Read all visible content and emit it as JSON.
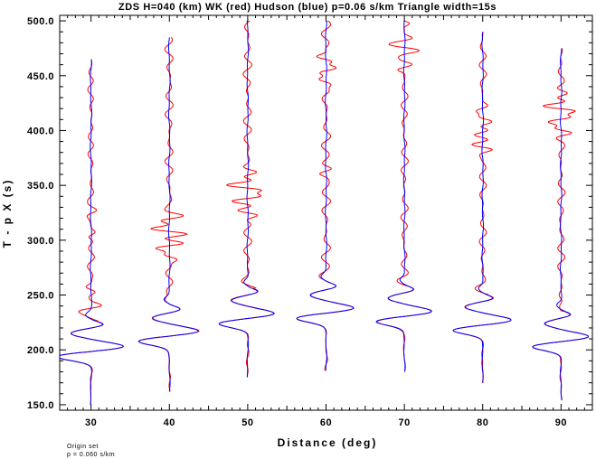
{
  "chart_data": {
    "type": "line",
    "title": "ZDS H=040 (km) WK (red) Hudson (blue) p=0.06 s/km Triangle width=15s",
    "xlabel": "Distance (deg)",
    "ylabel": "T - p X (s)",
    "xlim": [
      26,
      94
    ],
    "ylim": [
      145,
      505
    ],
    "xticks": [
      30,
      40,
      50,
      60,
      70,
      80,
      90
    ],
    "yticks": [
      150.0,
      200.0,
      250.0,
      300.0,
      350.0,
      400.0,
      450.0,
      500.0
    ],
    "ytick_labels": [
      "150.0",
      "200.0",
      "250.0",
      "300.0",
      "350.0",
      "400.0",
      "450.0",
      "500.0"
    ],
    "grid": false,
    "note_lines": [
      "Origin set",
      "p = 0.060 s/km"
    ],
    "series_colors": {
      "WK": "#ff0000",
      "Hudson": "#0000ff"
    },
    "traces": [
      {
        "distance": 30,
        "blue_start": 465,
        "red_start": 465,
        "end": 150,
        "arrival": 196,
        "amp": 4.5,
        "red_wiggle": 0.9,
        "red_pulses": [
          [
            238,
            1.3
          ],
          [
            255,
            -0.8
          ],
          [
            305,
            0.6
          ],
          [
            325,
            0.5
          ]
        ]
      },
      {
        "distance": 40,
        "blue_start": 485,
        "red_start": 485,
        "end": 162,
        "arrival": 210,
        "amp": 4.0,
        "red_wiggle": 1.1,
        "red_pulses": [
          [
            295,
            2.6
          ],
          [
            308,
            -2.8
          ],
          [
            320,
            1.8
          ],
          [
            285,
            -1.2
          ]
        ]
      },
      {
        "distance": 50,
        "blue_start": 500,
        "red_start": 500,
        "end": 175,
        "arrival": 226,
        "amp": 3.8,
        "red_wiggle": 1.3,
        "red_pulses": [
          [
            348,
            -3.0
          ],
          [
            338,
            2.5
          ],
          [
            325,
            -1.8
          ],
          [
            360,
            1.5
          ]
        ]
      },
      {
        "distance": 60,
        "blue_start": 500,
        "red_start": 500,
        "end": 181,
        "arrival": 231,
        "amp": 3.8,
        "red_wiggle": 1.2,
        "red_pulses": [
          [
            455,
            1.8
          ],
          [
            465,
            -1.5
          ],
          [
            445,
            -1.0
          ],
          [
            363,
            1.0
          ]
        ]
      },
      {
        "distance": 70,
        "blue_start": 500,
        "red_start": 500,
        "end": 180,
        "arrival": 228,
        "amp": 3.8,
        "red_wiggle": 1.1,
        "red_pulses": [
          [
            475,
            -1.8
          ],
          [
            482,
            1.5
          ],
          [
            458,
            1.2
          ],
          [
            500,
            -1.0
          ]
        ]
      },
      {
        "distance": 80,
        "blue_start": 490,
        "red_start": 490,
        "end": 170,
        "arrival": 220,
        "amp": 4.0,
        "red_wiggle": 1.0,
        "red_pulses": [
          [
            385,
            -1.8
          ],
          [
            398,
            1.5
          ],
          [
            410,
            -1.0
          ],
          [
            420,
            0.8
          ]
        ]
      },
      {
        "distance": 90,
        "blue_start": 475,
        "red_start": 475,
        "end": 154,
        "arrival": 205,
        "amp": 3.8,
        "red_wiggle": 1.0,
        "red_pulses": [
          [
            420,
            -3.0
          ],
          [
            410,
            2.5
          ],
          [
            400,
            -2.0
          ],
          [
            432,
            1.2
          ]
        ]
      }
    ]
  }
}
